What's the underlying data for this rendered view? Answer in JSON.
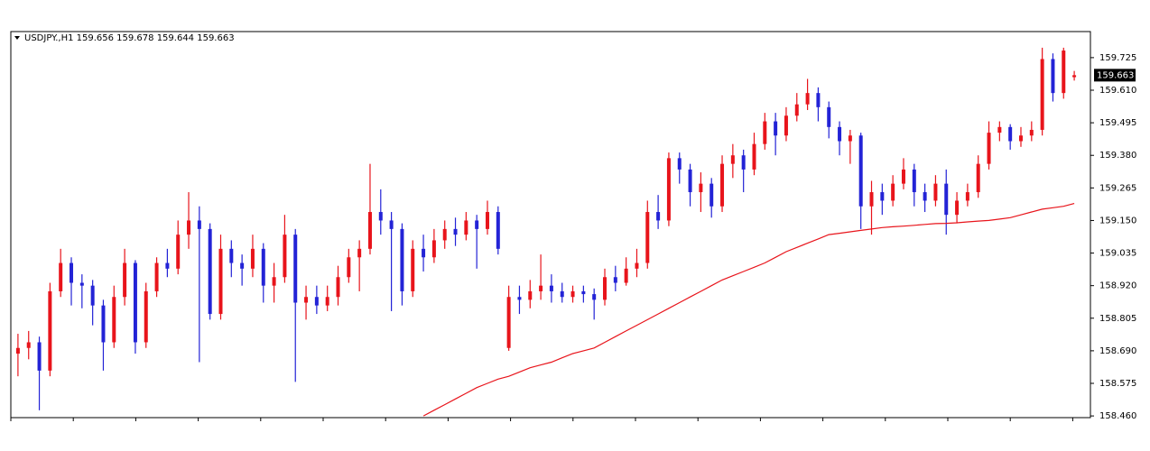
{
  "chart_data": {
    "type": "candlestick",
    "title": "USDJPY.,H1  159.656 159.678 159.644 159.663",
    "up_color": "#e8141b",
    "down_color": "#2323d6",
    "ylim": [
      158.454,
      159.817
    ],
    "yticks": [
      {
        "value": 158.46,
        "label": "158.460"
      },
      158.575,
      {
        "value": 158.69,
        "label": "158.690"
      },
      158.805,
      {
        "value": 158.92,
        "label": "158.920"
      },
      159.035,
      {
        "value": 159.15,
        "label": "159.150"
      },
      159.265,
      {
        "value": 159.38,
        "label": "159.380"
      },
      159.495,
      {
        "value": 159.61,
        "label": "159.610"
      },
      159.725
    ],
    "open": [
      158.68,
      158.7,
      158.72,
      158.62,
      158.9,
      159.0,
      158.93,
      158.92,
      158.85,
      158.72,
      158.88,
      159.0,
      158.72,
      158.9,
      159.0,
      158.98,
      159.1,
      159.15,
      159.12,
      158.82,
      159.05,
      159.0,
      158.98,
      159.05,
      158.92,
      158.95,
      159.1,
      158.86,
      158.88,
      158.85,
      158.88,
      158.95,
      159.02,
      159.05,
      159.18,
      159.15,
      159.12,
      158.9,
      159.05,
      159.02,
      159.08,
      159.12,
      159.1,
      159.15,
      159.12,
      159.18,
      158.7,
      158.88,
      158.87,
      158.9,
      158.92,
      158.9,
      158.88,
      158.9,
      158.89,
      158.87,
      158.95,
      158.93,
      158.98,
      159.0,
      159.18,
      159.15,
      159.37,
      159.33,
      159.25,
      159.28,
      159.2,
      159.35,
      159.38,
      159.33,
      159.42,
      159.5,
      159.45,
      159.52,
      159.56,
      159.6,
      159.55,
      159.48,
      159.43,
      159.45,
      159.2,
      159.25,
      159.22,
      159.28,
      159.33,
      159.25,
      159.22,
      159.28,
      159.17,
      159.22,
      159.25,
      159.35,
      159.46,
      159.48,
      159.43,
      159.45,
      159.47,
      159.72,
      159.6,
      159.656
    ],
    "high": [
      158.75,
      158.76,
      158.74,
      158.93,
      159.05,
      159.02,
      158.96,
      158.94,
      158.87,
      158.92,
      159.05,
      159.01,
      158.93,
      159.02,
      159.05,
      159.15,
      159.25,
      159.2,
      159.14,
      159.1,
      159.08,
      159.03,
      159.1,
      159.07,
      159.0,
      159.17,
      159.12,
      158.92,
      158.92,
      158.92,
      158.99,
      159.05,
      159.08,
      159.35,
      159.26,
      159.18,
      159.14,
      159.08,
      159.1,
      159.12,
      159.15,
      159.16,
      159.18,
      159.17,
      159.22,
      159.2,
      158.92,
      158.92,
      158.94,
      159.03,
      158.96,
      158.93,
      158.92,
      158.92,
      158.91,
      158.98,
      158.99,
      159.02,
      159.05,
      159.22,
      159.24,
      159.39,
      159.39,
      159.35,
      159.32,
      159.3,
      159.38,
      159.42,
      159.4,
      159.46,
      159.53,
      159.53,
      159.55,
      159.6,
      159.65,
      159.62,
      159.57,
      159.5,
      159.47,
      159.46,
      159.29,
      159.28,
      159.31,
      159.37,
      159.35,
      159.28,
      159.31,
      159.33,
      159.25,
      159.28,
      159.38,
      159.5,
      159.5,
      159.49,
      159.48,
      159.5,
      159.76,
      159.74,
      159.76,
      159.678
    ],
    "low": [
      158.6,
      158.66,
      158.48,
      158.6,
      158.88,
      158.85,
      158.84,
      158.78,
      158.62,
      158.7,
      158.85,
      158.68,
      158.7,
      158.88,
      158.95,
      158.96,
      159.05,
      158.65,
      158.8,
      158.8,
      158.95,
      158.92,
      158.95,
      158.86,
      158.86,
      158.93,
      158.58,
      158.8,
      158.82,
      158.83,
      158.85,
      158.93,
      158.9,
      159.03,
      159.1,
      158.83,
      158.85,
      158.88,
      158.97,
      159.0,
      159.05,
      159.06,
      159.08,
      158.98,
      159.1,
      159.03,
      158.69,
      158.82,
      158.84,
      158.87,
      158.86,
      158.86,
      158.86,
      158.86,
      158.8,
      158.85,
      158.9,
      158.92,
      158.95,
      158.98,
      159.12,
      159.13,
      159.28,
      159.2,
      159.18,
      159.16,
      159.18,
      159.3,
      159.25,
      159.31,
      159.4,
      159.38,
      159.43,
      159.5,
      159.54,
      159.5,
      159.44,
      159.38,
      159.35,
      159.12,
      159.1,
      159.17,
      159.2,
      159.26,
      159.2,
      159.18,
      159.2,
      159.1,
      159.14,
      159.2,
      159.23,
      159.33,
      159.43,
      159.4,
      159.41,
      159.43,
      159.45,
      159.57,
      159.58,
      159.644
    ],
    "close": [
      158.7,
      158.72,
      158.62,
      158.9,
      159.0,
      158.93,
      158.92,
      158.85,
      158.72,
      158.88,
      159.0,
      158.72,
      158.9,
      159.0,
      158.98,
      159.1,
      159.15,
      159.12,
      158.82,
      159.05,
      159.0,
      158.98,
      159.05,
      158.92,
      158.95,
      159.1,
      158.86,
      158.88,
      158.85,
      158.88,
      158.95,
      159.02,
      159.05,
      159.18,
      159.15,
      159.12,
      158.9,
      159.05,
      159.02,
      159.08,
      159.12,
      159.1,
      159.15,
      159.12,
      159.18,
      159.05,
      158.88,
      158.87,
      158.9,
      158.92,
      158.9,
      158.88,
      158.9,
      158.89,
      158.87,
      158.95,
      158.93,
      158.98,
      159.0,
      159.18,
      159.15,
      159.37,
      159.33,
      159.25,
      159.28,
      159.2,
      159.35,
      159.38,
      159.33,
      159.42,
      159.5,
      159.45,
      159.52,
      159.56,
      159.6,
      159.55,
      159.48,
      159.43,
      159.45,
      159.2,
      159.25,
      159.22,
      159.28,
      159.33,
      159.25,
      159.22,
      159.28,
      159.17,
      159.22,
      159.25,
      159.35,
      159.46,
      159.48,
      159.43,
      159.45,
      159.47,
      159.72,
      159.6,
      159.75,
      159.663
    ],
    "ma": {
      "color": "#e8141b",
      "values": [
        null,
        null,
        null,
        null,
        null,
        null,
        null,
        null,
        null,
        null,
        null,
        null,
        null,
        null,
        null,
        null,
        null,
        null,
        null,
        null,
        null,
        null,
        null,
        null,
        null,
        null,
        null,
        null,
        null,
        null,
        null,
        null,
        null,
        null,
        null,
        null,
        null,
        null,
        158.46,
        158.48,
        158.5,
        158.52,
        158.54,
        158.56,
        158.575,
        158.59,
        158.6,
        158.615,
        158.63,
        158.64,
        158.65,
        158.665,
        158.68,
        158.69,
        158.7,
        158.72,
        158.74,
        158.76,
        158.78,
        158.8,
        158.82,
        158.84,
        158.86,
        158.88,
        158.9,
        158.92,
        158.94,
        158.955,
        158.97,
        158.985,
        159.0,
        159.02,
        159.04,
        159.055,
        159.07,
        159.085,
        159.1,
        159.105,
        159.11,
        159.115,
        159.12,
        159.125,
        159.128,
        159.13,
        159.133,
        159.136,
        159.139,
        159.14,
        159.142,
        159.145,
        159.148,
        159.15,
        159.155,
        159.16,
        159.17,
        159.18,
        159.19,
        159.195,
        159.2,
        159.21
      ]
    }
  }
}
